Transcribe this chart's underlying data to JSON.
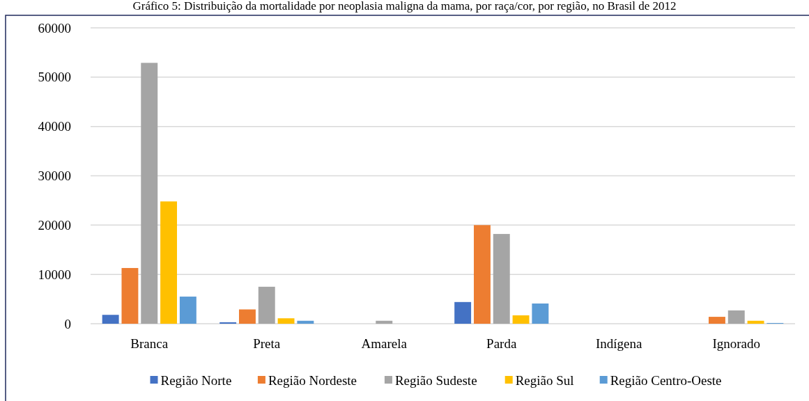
{
  "chart_data": {
    "type": "bar",
    "title": "Gráfico 5: Distribuição da mortalidade por neoplasia maligna da mama, por raça/cor, por região, no Brasil de 2012",
    "categories": [
      "Branca",
      "Preta",
      "Amarela",
      "Parda",
      "Indígena",
      "Ignorado"
    ],
    "series": [
      {
        "name": "Região Norte",
        "color": "#4472c4",
        "values": [
          1800,
          300,
          0,
          4400,
          0,
          0
        ]
      },
      {
        "name": "Região Nordeste",
        "color": "#ed7d31",
        "values": [
          11300,
          2900,
          0,
          20000,
          0,
          1400
        ]
      },
      {
        "name": "Região Sudeste",
        "color": "#a5a5a5",
        "values": [
          52900,
          7500,
          600,
          18200,
          0,
          2700
        ]
      },
      {
        "name": "Região Sul",
        "color": "#ffc000",
        "values": [
          24800,
          1100,
          0,
          1700,
          0,
          600
        ]
      },
      {
        "name": "Região Centro-Oeste",
        "color": "#5b9bd5",
        "values": [
          5500,
          600,
          0,
          4100,
          0,
          150
        ]
      }
    ],
    "ylim": [
      0,
      60000
    ],
    "yticks": [
      0,
      10000,
      20000,
      30000,
      40000,
      50000,
      60000
    ],
    "grid": "y",
    "legend": "bottom"
  }
}
